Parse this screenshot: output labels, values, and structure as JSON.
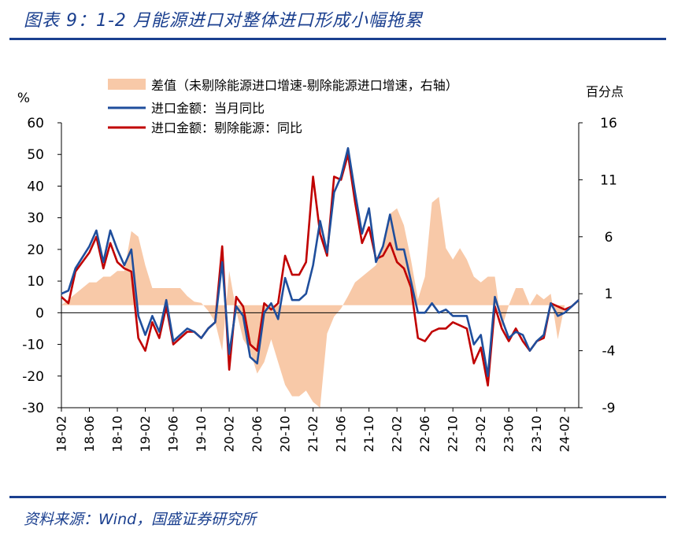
{
  "header": {
    "title": "图表 9：1-2 月能源进口对整体进口形成小幅拖累"
  },
  "footer": {
    "source": "资料来源：Wind，国盛证券研究所"
  },
  "colors": {
    "accent": "#1a3f8f",
    "series_total": "#1f4e9c",
    "series_ex_energy": "#c00000",
    "series_diff": "#f8c9a8"
  },
  "chart_data": {
    "type": "line",
    "left_axis": {
      "unit": "%",
      "ylim": [
        -30,
        60
      ],
      "ticks": [
        60,
        50,
        40,
        30,
        20,
        10,
        0,
        -10,
        -20,
        -30
      ]
    },
    "right_axis": {
      "unit": "百分点",
      "ylim": [
        -9,
        16
      ],
      "ticks": [
        16,
        11,
        6,
        1,
        -4,
        -9
      ]
    },
    "x_tick_labels": [
      "18-02",
      "18-06",
      "18-10",
      "19-02",
      "19-06",
      "19-10",
      "20-02",
      "20-06",
      "20-10",
      "21-02",
      "21-06",
      "21-10",
      "22-02",
      "22-06",
      "22-10",
      "23-02",
      "23-06",
      "23-10",
      "24-02"
    ],
    "legend": [
      {
        "key": "diff",
        "label": "差值（未剔除能源进口增速-剔除能源进口增速，右轴）"
      },
      {
        "key": "total",
        "label": "进口金额：当月同比"
      },
      {
        "key": "ex_energy",
        "label": "进口金额：剔除能源：同比"
      }
    ],
    "series": [
      {
        "name": "进口金额：当月同比",
        "axis": "left",
        "style": "line",
        "points": [
          [
            0,
            6
          ],
          [
            1,
            7
          ],
          [
            2,
            14
          ],
          [
            4,
            21
          ],
          [
            5,
            26
          ],
          [
            6,
            16
          ],
          [
            7,
            26
          ],
          [
            8,
            20
          ],
          [
            9,
            15
          ],
          [
            10,
            20
          ],
          [
            11,
            -1
          ],
          [
            12,
            -7
          ],
          [
            13,
            -1
          ],
          [
            14,
            -6
          ],
          [
            15,
            4
          ],
          [
            16,
            -9
          ],
          [
            17,
            -7
          ],
          [
            18,
            -5
          ],
          [
            19,
            -6
          ],
          [
            20,
            -8
          ],
          [
            21,
            -5
          ],
          [
            22,
            -3
          ],
          [
            23,
            16
          ],
          [
            24,
            -13
          ],
          [
            25,
            2
          ],
          [
            26,
            -1
          ],
          [
            27,
            -14
          ],
          [
            28,
            -16
          ],
          [
            29,
            0
          ],
          [
            30,
            3
          ],
          [
            31,
            -2
          ],
          [
            32,
            11
          ],
          [
            33,
            4
          ],
          [
            34,
            4
          ],
          [
            35,
            6
          ],
          [
            36,
            15
          ],
          [
            37,
            29
          ],
          [
            38,
            19
          ],
          [
            39,
            38
          ],
          [
            40,
            43
          ],
          [
            41,
            52
          ],
          [
            42,
            38
          ],
          [
            43,
            25
          ],
          [
            44,
            33
          ],
          [
            45,
            16
          ],
          [
            46,
            21
          ],
          [
            47,
            31
          ],
          [
            48,
            20
          ],
          [
            49,
            20
          ],
          [
            50,
            10
          ],
          [
            51,
            0
          ],
          [
            52,
            0
          ],
          [
            53,
            3
          ],
          [
            54,
            0
          ],
          [
            55,
            1
          ],
          [
            56,
            -1
          ],
          [
            57,
            -1
          ],
          [
            58,
            -1
          ],
          [
            59,
            -10
          ],
          [
            60,
            -7
          ],
          [
            61,
            -20
          ],
          [
            62,
            5
          ],
          [
            63,
            -2
          ],
          [
            64,
            -8
          ],
          [
            65,
            -6
          ],
          [
            66,
            -7
          ],
          [
            67,
            -12
          ],
          [
            68,
            -9
          ],
          [
            69,
            -7
          ],
          [
            70,
            3
          ],
          [
            71,
            -1
          ],
          [
            72,
            0
          ],
          [
            73,
            2
          ],
          [
            74,
            4
          ]
        ]
      },
      {
        "name": "进口金额：剔除能源：同比",
        "axis": "left",
        "style": "line",
        "points": [
          [
            0,
            5
          ],
          [
            1,
            3
          ],
          [
            2,
            13
          ],
          [
            4,
            19
          ],
          [
            5,
            24
          ],
          [
            6,
            14
          ],
          [
            7,
            22
          ],
          [
            8,
            16
          ],
          [
            9,
            14
          ],
          [
            10,
            13
          ],
          [
            11,
            -8
          ],
          [
            12,
            -12
          ],
          [
            13,
            -3
          ],
          [
            14,
            -8
          ],
          [
            15,
            2
          ],
          [
            16,
            -10
          ],
          [
            17,
            -8
          ],
          [
            18,
            -6
          ],
          [
            19,
            -6
          ],
          [
            20,
            -8
          ],
          [
            21,
            -5
          ],
          [
            22,
            -3
          ],
          [
            23,
            21
          ],
          [
            24,
            -18
          ],
          [
            25,
            5
          ],
          [
            26,
            2
          ],
          [
            27,
            -10
          ],
          [
            28,
            -12
          ],
          [
            29,
            3
          ],
          [
            30,
            1
          ],
          [
            31,
            3
          ],
          [
            32,
            18
          ],
          [
            33,
            12
          ],
          [
            34,
            12
          ],
          [
            35,
            16
          ],
          [
            36,
            43
          ],
          [
            37,
            25
          ],
          [
            38,
            18
          ],
          [
            39,
            43
          ],
          [
            40,
            42
          ],
          [
            41,
            50
          ],
          [
            42,
            35
          ],
          [
            43,
            22
          ],
          [
            44,
            27
          ],
          [
            45,
            17
          ],
          [
            46,
            18
          ],
          [
            47,
            22
          ],
          [
            48,
            16
          ],
          [
            49,
            14
          ],
          [
            50,
            8
          ],
          [
            51,
            -8
          ],
          [
            52,
            -9
          ],
          [
            53,
            -6
          ],
          [
            54,
            -5
          ],
          [
            55,
            -5
          ],
          [
            56,
            -3
          ],
          [
            57,
            -4
          ],
          [
            58,
            -5
          ],
          [
            59,
            -16
          ],
          [
            60,
            -11
          ],
          [
            61,
            -23
          ],
          [
            62,
            2
          ],
          [
            63,
            -5
          ],
          [
            64,
            -9
          ],
          [
            65,
            -5
          ],
          [
            66,
            -9
          ],
          [
            67,
            -12
          ],
          [
            68,
            -9
          ],
          [
            69,
            -8
          ],
          [
            70,
            3
          ],
          [
            71,
            2
          ],
          [
            72,
            1
          ],
          [
            73,
            2
          ],
          [
            74,
            4
          ]
        ]
      },
      {
        "name": "差值（未剔除能源进口增速-剔除能源进口增速，右轴）",
        "axis": "right",
        "style": "area",
        "points": [
          [
            0,
            0
          ],
          [
            1,
            0.5
          ],
          [
            2,
            1
          ],
          [
            3,
            1.5
          ],
          [
            4,
            2
          ],
          [
            5,
            2
          ],
          [
            6,
            2.5
          ],
          [
            7,
            2.5
          ],
          [
            8,
            3
          ],
          [
            9,
            3
          ],
          [
            10,
            6.5
          ],
          [
            11,
            6
          ],
          [
            12,
            3.5
          ],
          [
            13,
            1.5
          ],
          [
            14,
            1.5
          ],
          [
            15,
            1.5
          ],
          [
            16,
            1.5
          ],
          [
            17,
            1.5
          ],
          [
            18,
            0.8
          ],
          [
            19,
            0.3
          ],
          [
            20,
            0.2
          ],
          [
            21,
            -0.5
          ],
          [
            22,
            -1.5
          ],
          [
            23,
            -4
          ],
          [
            24,
            3
          ],
          [
            25,
            -0.5
          ],
          [
            26,
            -3
          ],
          [
            27,
            -4
          ],
          [
            28,
            -6
          ],
          [
            29,
            -5
          ],
          [
            30,
            -3
          ],
          [
            31,
            -5
          ],
          [
            32,
            -7
          ],
          [
            33,
            -8
          ],
          [
            34,
            -8
          ],
          [
            35,
            -7.5
          ],
          [
            36,
            -8.5
          ],
          [
            37,
            -9
          ],
          [
            38,
            -2.5
          ],
          [
            39,
            -1
          ],
          [
            40,
            -0.3
          ],
          [
            41,
            0.8
          ],
          [
            42,
            2
          ],
          [
            43,
            2.5
          ],
          [
            44,
            3
          ],
          [
            45,
            3.5
          ],
          [
            46,
            5
          ],
          [
            47,
            8
          ],
          [
            48,
            8.5
          ],
          [
            49,
            7
          ],
          [
            50,
            4
          ],
          [
            51,
            0.5
          ],
          [
            52,
            2.5
          ],
          [
            53,
            9
          ],
          [
            54,
            9.5
          ],
          [
            55,
            5
          ],
          [
            56,
            4
          ],
          [
            57,
            5
          ],
          [
            58,
            4
          ],
          [
            59,
            2.5
          ],
          [
            60,
            2
          ],
          [
            61,
            2.5
          ],
          [
            62,
            2.5
          ],
          [
            63,
            -2
          ],
          [
            64,
            0
          ],
          [
            65,
            1.5
          ],
          [
            66,
            1.5
          ],
          [
            67,
            0
          ],
          [
            68,
            1
          ],
          [
            69,
            0.5
          ],
          [
            70,
            1
          ],
          [
            71,
            -3
          ],
          [
            72,
            0
          ],
          [
            73,
            0
          ],
          [
            74,
            0
          ]
        ]
      }
    ]
  }
}
